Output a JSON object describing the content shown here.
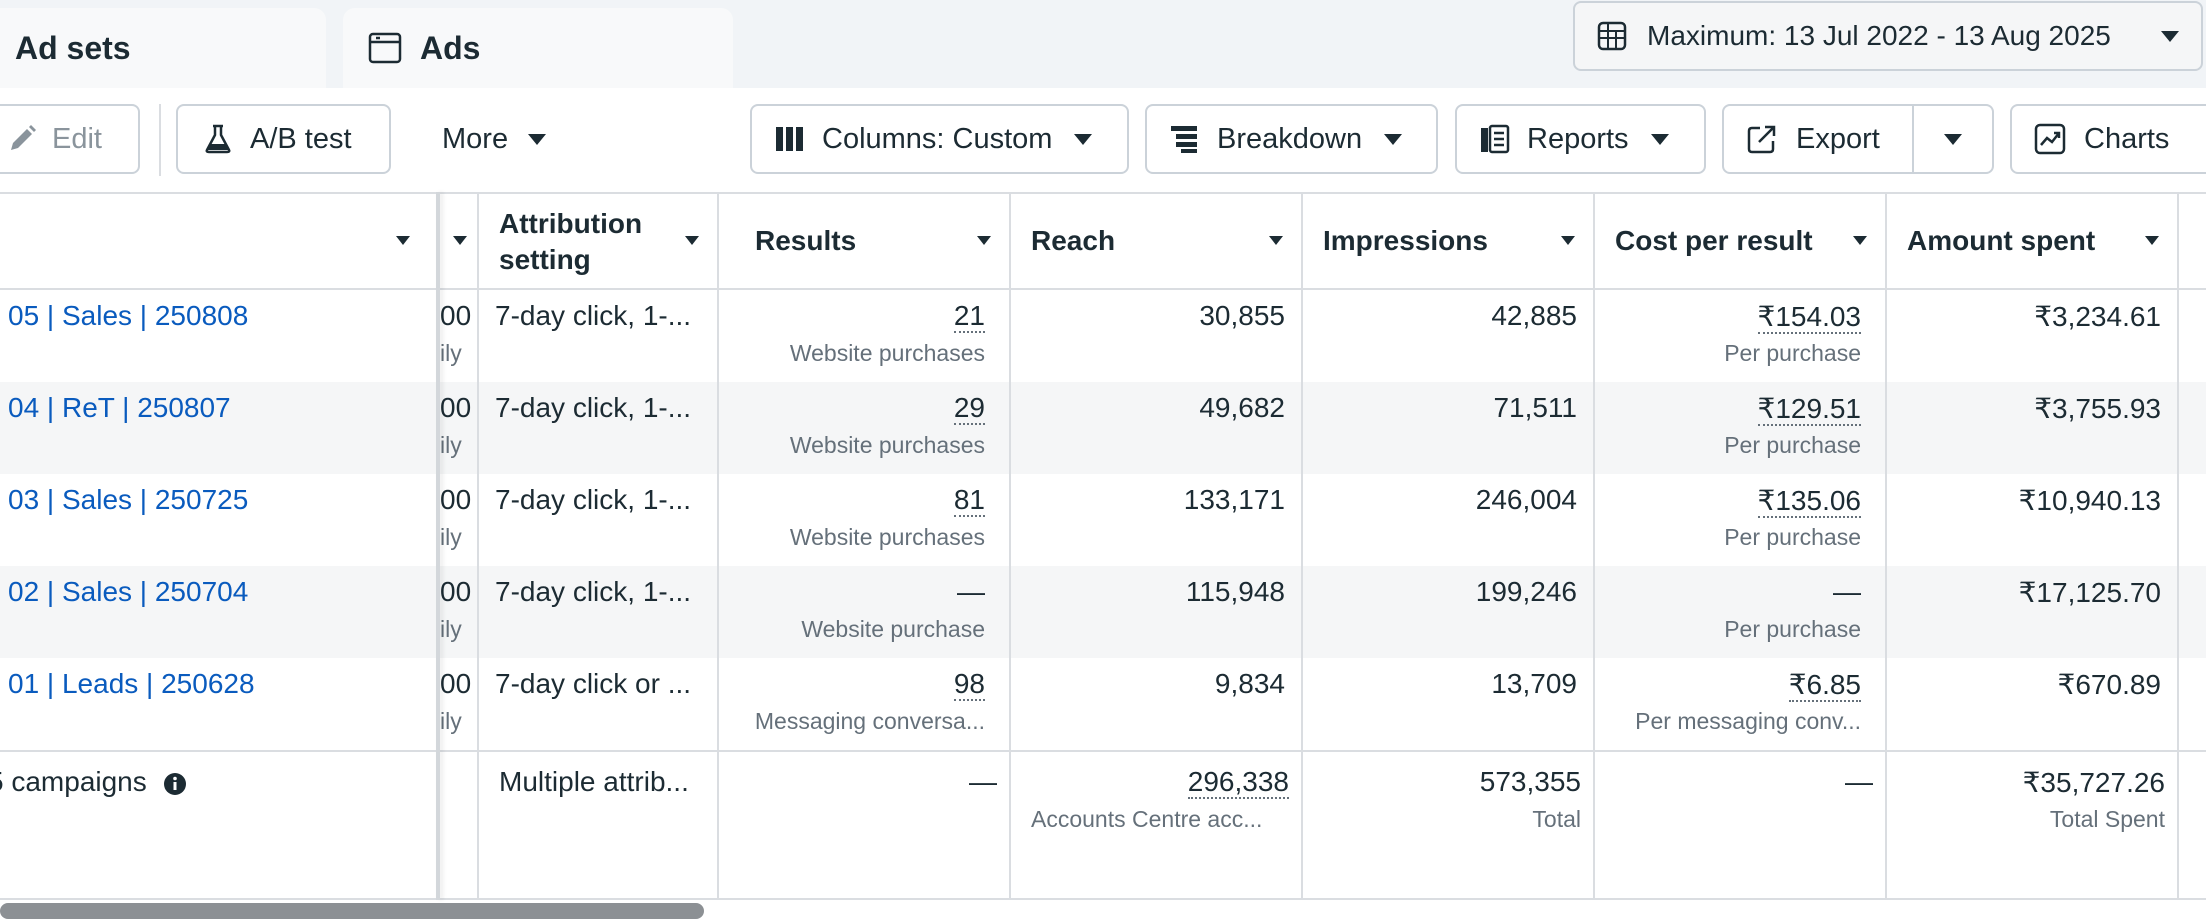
{
  "tabs": {
    "adsets": "Ad sets",
    "ads": "Ads"
  },
  "date_range": "Maximum: 13 Jul 2022 - 13 Aug 2025",
  "toolbar": {
    "edit": "Edit",
    "ab_test": "A/B test",
    "more": "More",
    "columns": "Columns: Custom",
    "breakdown": "Breakdown",
    "reports": "Reports",
    "export": "Export",
    "charts": "Charts"
  },
  "icons": {
    "date": "calendar-table-icon",
    "ads_tab": "window-icon",
    "edit": "pencil-icon",
    "ab_test": "flask-icon",
    "columns": "columns-icon",
    "breakdown": "breakdown-icon",
    "reports": "reports-icon",
    "export": "export-icon",
    "charts": "line-chart-icon",
    "summary_info": "info-icon"
  },
  "colors": {
    "link": "#0a5bbe",
    "text": "#1c2b33",
    "muted": "#65707a",
    "alt_row": "#f5f6f7"
  },
  "table": {
    "headers": {
      "attribution_line1": "Attribution",
      "attribution_line2": "setting",
      "results": "Results",
      "reach": "Reach",
      "impressions": "Impressions",
      "cost_per_result": "Cost per result",
      "amount_spent": "Amount spent"
    },
    "rows": [
      {
        "name": "05 | Sales | 250808",
        "budget_top": "00",
        "budget_sub": "ily",
        "attribution": "7-day click, 1-...",
        "results": "21",
        "results_sub": "Website purchases",
        "reach": "30,855",
        "impressions": "42,885",
        "cpr": "₹154.03",
        "cpr_sub": "Per purchase",
        "spent": "₹3,234.61"
      },
      {
        "name": "04 | ReT | 250807",
        "budget_top": "00",
        "budget_sub": "ily",
        "attribution": "7-day click, 1-...",
        "results": "29",
        "results_sub": "Website purchases",
        "reach": "49,682",
        "impressions": "71,511",
        "cpr": "₹129.51",
        "cpr_sub": "Per purchase",
        "spent": "₹3,755.93"
      },
      {
        "name": "03 | Sales | 250725",
        "budget_top": "00",
        "budget_sub": "ily",
        "attribution": "7-day click, 1-...",
        "results": "81",
        "results_sub": "Website purchases",
        "reach": "133,171",
        "impressions": "246,004",
        "cpr": "₹135.06",
        "cpr_sub": "Per purchase",
        "spent": "₹10,940.13"
      },
      {
        "name": "02 | Sales | 250704",
        "budget_top": "00",
        "budget_sub": "ily",
        "attribution": "7-day click, 1-...",
        "results": "—",
        "results_sub": "Website purchase",
        "reach": "115,948",
        "impressions": "199,246",
        "cpr": "—",
        "cpr_sub": "Per purchase",
        "spent": "₹17,125.70"
      },
      {
        "name": "01 | Leads | 250628",
        "budget_top": "00",
        "budget_sub": "ily",
        "attribution": "7-day click or ...",
        "results": "98",
        "results_sub": "Messaging conversa...",
        "reach": "9,834",
        "impressions": "13,709",
        "cpr": "₹6.85",
        "cpr_sub": "Per messaging conv...",
        "spent": "₹670.89"
      }
    ],
    "summary": {
      "label": "5 campaigns",
      "attribution": "Multiple attrib...",
      "results": "—",
      "reach": "296,338",
      "reach_sub": "Accounts Centre acc...",
      "impressions": "573,355",
      "impressions_sub": "Total",
      "cpr": "—",
      "spent": "₹35,727.26",
      "spent_sub": "Total Spent"
    }
  }
}
